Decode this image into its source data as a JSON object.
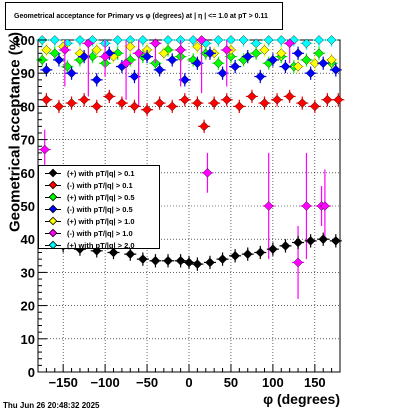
{
  "title": "Geometrical acceptance for Primary vs φ (degrees) at |  η  | <= 1.0 at pT > 0.11",
  "timestamp": "Thu Jun 26 20:48:32 2025",
  "chart_data": {
    "type": "scatter",
    "xlabel": "φ (degrees)",
    "ylabel": "Geometrical acceptance (%)",
    "xlim": [
      -180,
      180
    ],
    "ylim": [
      0,
      100
    ],
    "x_ticks": [
      -150,
      -100,
      -50,
      0,
      50,
      100,
      150
    ],
    "y_ticks": [
      0,
      10,
      20,
      30,
      40,
      50,
      60,
      70,
      80,
      90,
      100
    ],
    "grid": true,
    "legend_position": "left-middle",
    "series": [
      {
        "name": "(+) with pT/|q| > 0.1",
        "color": "#000000",
        "x": [
          -170,
          -150,
          -130,
          -110,
          -90,
          -70,
          -55,
          -40,
          -25,
          -10,
          0,
          10,
          25,
          40,
          55,
          70,
          85,
          100,
          115,
          130,
          145,
          160,
          175
        ],
        "y": [
          39,
          38,
          37,
          36.5,
          36,
          35.5,
          34,
          33.5,
          33.5,
          33.5,
          33,
          32.5,
          33,
          34,
          35,
          35.5,
          36,
          37,
          38,
          39,
          39.5,
          40,
          39.5
        ]
      },
      {
        "name": "(-) with pT/|q| > 0.1",
        "color": "#ff0000",
        "x": [
          -170,
          -155,
          -140,
          -125,
          -110,
          -95,
          -80,
          -65,
          -50,
          -35,
          -20,
          -5,
          10,
          18,
          30,
          45,
          60,
          75,
          90,
          105,
          120,
          135,
          150,
          165,
          178
        ],
        "y": [
          82,
          80,
          81,
          82,
          80,
          83,
          81,
          80,
          79,
          81,
          80,
          82,
          81,
          74,
          81,
          82,
          80,
          83,
          81,
          82,
          83,
          81,
          80,
          82,
          82
        ]
      },
      {
        "name": "(+) with pT/|q| > 0.5",
        "color": "#00ff00",
        "x": [
          -175,
          -160,
          -145,
          -130,
          -115,
          -100,
          -85,
          -70,
          -55,
          -40,
          -25,
          -10,
          5,
          20,
          35,
          50,
          65,
          80,
          95,
          110,
          125,
          140,
          155,
          170
        ],
        "y": [
          94,
          96,
          92,
          94,
          95,
          93,
          96,
          94,
          95,
          93,
          97,
          95,
          94,
          96,
          93,
          95,
          94,
          96,
          93,
          95,
          92,
          94,
          96,
          93
        ]
      },
      {
        "name": "(-) with pT/|q| > 0.5",
        "color": "#0000ff",
        "x": [
          -170,
          -155,
          -140,
          -125,
          -110,
          -95,
          -80,
          -65,
          -50,
          -35,
          -20,
          -5,
          10,
          25,
          40,
          55,
          70,
          85,
          100,
          115,
          130,
          145,
          160,
          175
        ],
        "y": [
          91,
          94,
          90,
          95,
          88,
          96,
          92,
          89,
          95,
          91,
          94,
          88,
          93,
          96,
          90,
          92,
          95,
          89,
          94,
          92,
          96,
          90,
          93,
          91
        ]
      },
      {
        "name": "(+) with pT/|q| > 1.0",
        "color": "#ffff00",
        "x": [
          -170,
          -150,
          -130,
          -110,
          -90,
          -70,
          -50,
          -30,
          -10,
          10,
          30,
          50,
          70,
          90,
          110,
          130,
          150,
          170
        ],
        "y": [
          97,
          98,
          96,
          97,
          95,
          98,
          97,
          96,
          97,
          98,
          96,
          97,
          95,
          97,
          96,
          92,
          93,
          94
        ]
      },
      {
        "name": "(-) with pT/|q| > 1.0",
        "color": "#ff00ff",
        "x": [
          -172,
          -148,
          -120,
          -100,
          -75,
          -60,
          -40,
          -10,
          15,
          22,
          45,
          95,
          120,
          130,
          140,
          158,
          162
        ],
        "y": [
          67,
          97,
          99,
          95,
          93,
          96,
          99,
          97,
          100,
          60,
          97,
          50,
          99,
          33,
          50,
          50,
          50
        ]
      },
      {
        "name": "(+) with pT/|q| > 2.0",
        "color": "#00ffff",
        "x": [
          -175,
          -160,
          -145,
          -130,
          -115,
          -100,
          -85,
          -70,
          -55,
          -40,
          -25,
          -10,
          5,
          20,
          35,
          50,
          65,
          80,
          95,
          110,
          125,
          140,
          155,
          170
        ],
        "y": [
          100,
          100,
          99,
          100,
          100,
          99,
          100,
          100,
          100,
          99,
          100,
          100,
          100,
          99,
          100,
          100,
          100,
          99,
          100,
          100,
          100,
          99,
          100,
          100
        ]
      }
    ]
  }
}
